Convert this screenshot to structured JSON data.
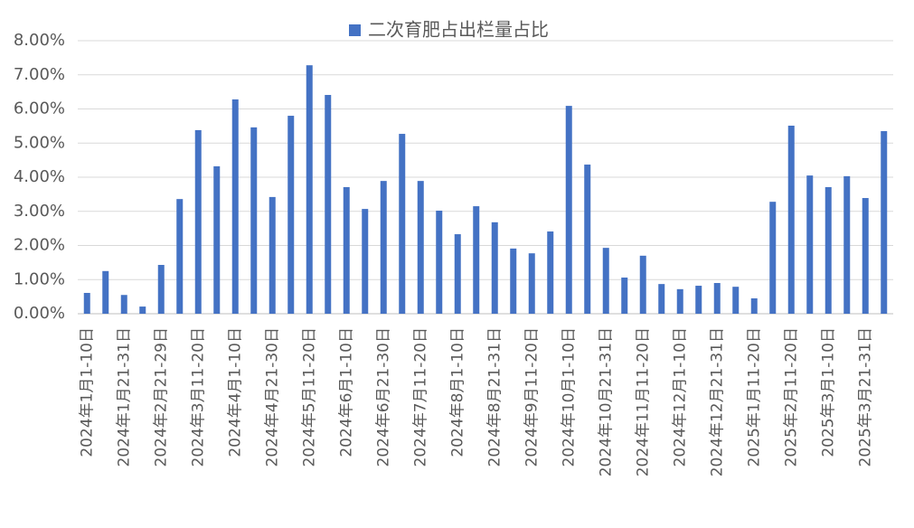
{
  "chart_data": {
    "type": "bar",
    "legend": "top",
    "series": [
      {
        "name": "二次育肥占出栏量占比",
        "color": "#4472c4",
        "values": [
          0.61,
          1.25,
          0.55,
          0.21,
          1.43,
          3.36,
          5.38,
          4.32,
          6.28,
          5.46,
          3.42,
          5.8,
          7.28,
          6.41,
          3.71,
          3.07,
          3.89,
          5.27,
          3.89,
          3.02,
          2.33,
          3.15,
          2.68,
          1.91,
          1.77,
          2.41,
          6.09,
          4.37,
          1.93,
          1.06,
          1.7,
          0.87,
          0.72,
          0.82,
          0.9,
          0.79,
          0.45,
          3.28,
          5.51,
          4.05,
          3.71,
          4.03,
          3.39,
          5.35
        ]
      }
    ],
    "categories": [
      "2024年1月1-10日",
      null,
      "2024年1月21-31日",
      null,
      "2024年2月21-29日",
      null,
      "2024年3月11-20日",
      null,
      "2024年4月1-10日",
      null,
      "2024年4月21-30日",
      null,
      "2024年5月11-20日",
      null,
      "2024年6月1-10日",
      null,
      "2024年6月21-30日",
      null,
      "2024年7月11-20日",
      null,
      "2024年8月1-10日",
      null,
      "2024年8月21-31日",
      null,
      "2024年9月11-20日",
      null,
      "2024年10月1-10日",
      null,
      "2024年10月21-31日",
      null,
      "2024年11月11-20日",
      null,
      "2024年12月1-10日",
      null,
      "2024年12月21-31日",
      null,
      "2025年1月11-20日",
      null,
      "2025年2月11-20日",
      null,
      "2025年3月1-10日",
      null,
      "2025年3月21-31日",
      null
    ],
    "ylim": [
      0,
      8
    ],
    "yticks": [
      {
        "value": 0,
        "label": "0.00%"
      },
      {
        "value": 1,
        "label": "1.00%"
      },
      {
        "value": 2,
        "label": "2.00%"
      },
      {
        "value": 3,
        "label": "3.00%"
      },
      {
        "value": 4,
        "label": "4.00%"
      },
      {
        "value": 5,
        "label": "5.00%"
      },
      {
        "value": 6,
        "label": "6.00%"
      },
      {
        "value": 7,
        "label": "7.00%"
      },
      {
        "value": 8,
        "label": "8.00%"
      }
    ],
    "grid": true
  }
}
